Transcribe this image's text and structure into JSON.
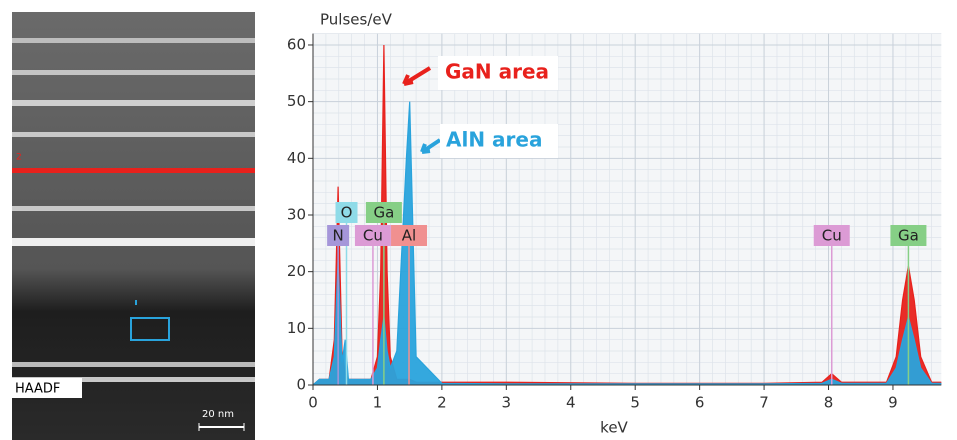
{
  "image": {
    "labels": {
      "line_marker": "2",
      "mode": "HAADF",
      "scale": "20 nm"
    }
  },
  "chart_data": {
    "type": "area",
    "y_axis_label": "Pulses/eV",
    "x_axis_label": "keV",
    "xlim": [
      0,
      9.75
    ],
    "ylim": [
      0,
      62
    ],
    "xticks": [
      0,
      1,
      2,
      3,
      4,
      5,
      6,
      7,
      8,
      9
    ],
    "yticks": [
      0,
      10,
      20,
      30,
      40,
      50,
      60
    ],
    "grid": true,
    "x": [
      0,
      0.1,
      0.25,
      0.33,
      0.39,
      0.45,
      0.5,
      0.55,
      0.7,
      0.9,
      1.0,
      1.05,
      1.1,
      1.15,
      1.2,
      1.3,
      1.45,
      1.5,
      1.6,
      2,
      3,
      5,
      7,
      7.9,
      8.05,
      8.2,
      8.9,
      9.05,
      9.15,
      9.24,
      9.33,
      9.43,
      9.6,
      9.75
    ],
    "series": [
      {
        "name": "GaN area",
        "color": "#e8211c",
        "values": [
          0,
          1,
          1,
          8,
          35,
          6,
          2,
          1,
          1,
          1,
          5,
          20,
          60,
          20,
          5,
          1,
          1,
          1,
          0.5,
          0.5,
          0.5,
          0.3,
          0.3,
          0.5,
          2,
          0.5,
          0.5,
          5,
          15,
          21,
          15,
          5,
          0.5,
          0.5
        ]
      },
      {
        "name": "AlN area",
        "color": "#29a3dc",
        "values": [
          0,
          1,
          1,
          5,
          22,
          4,
          8,
          1,
          1,
          1,
          3,
          8,
          12,
          6,
          3,
          6,
          40,
          50,
          5,
          0.3,
          0.2,
          0.2,
          0.2,
          0.3,
          1,
          0.3,
          0.3,
          3,
          8,
          12,
          8,
          3,
          0.3,
          0.3
        ]
      }
    ],
    "elements": [
      {
        "label": "O",
        "x": 0.52,
        "color": "#8fdbe8"
      },
      {
        "label": "Ga",
        "x": 1.1,
        "color": "#86cf86"
      },
      {
        "label": "N",
        "x": 0.39,
        "color": "#a596d9"
      },
      {
        "label": "Cu",
        "x": 0.93,
        "color": "#dc9bd5"
      },
      {
        "label": "Al",
        "x": 1.49,
        "color": "#f09090"
      },
      {
        "label": "Cu",
        "x": 8.05,
        "color": "#dc9bd5"
      },
      {
        "label": "Ga",
        "x": 9.24,
        "color": "#86cf86"
      }
    ]
  }
}
